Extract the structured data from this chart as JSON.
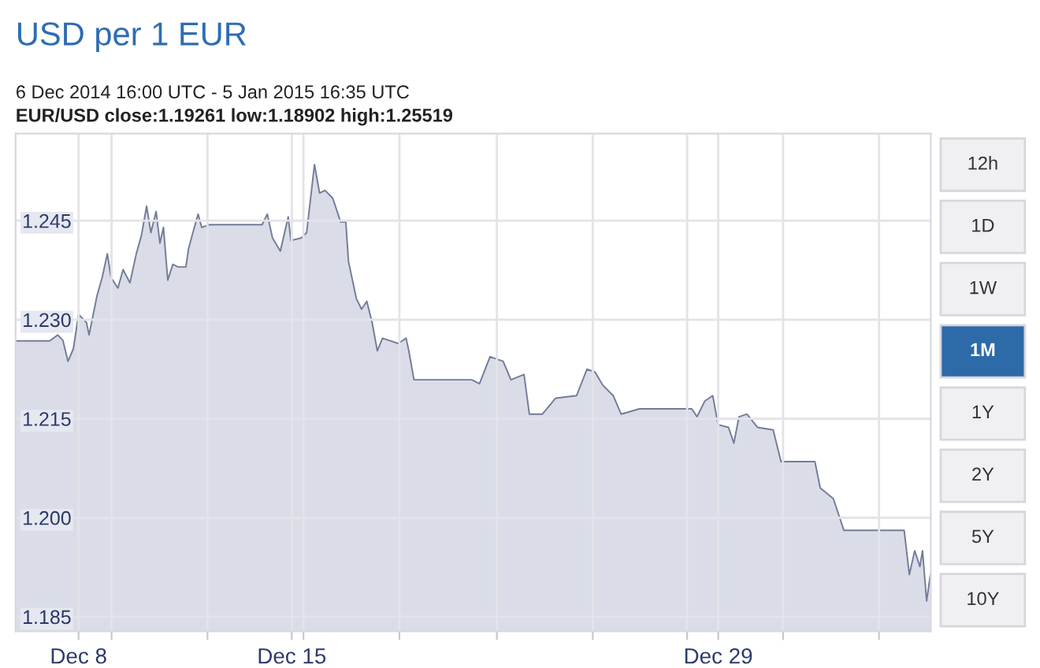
{
  "chart_data": [
    {
      "type": "area",
      "title": "USD per 1 EUR",
      "subtitle": "6 Dec 2014 16:00 UTC - 5 Jan 2015 16:35 UTC",
      "annotations": [
        "EUR/USD close:1.19261 low:1.18902 high:1.25519"
      ],
      "x": [
        "2014-12-05T22:24",
        "2014-12-07T01:18",
        "2014-12-07T07:30",
        "2014-12-07T11:36",
        "2014-12-07T15:42",
        "2014-12-07T19:54",
        "2014-12-08T00:00",
        "2014-12-08T06:12",
        "2014-12-08T08:18",
        "2014-12-08T14:30",
        "2014-12-08T18:36",
        "2014-12-08T22:42",
        "2014-12-09T01:36",
        "2014-12-09T07:00",
        "2014-12-09T11:06",
        "2014-12-09T16:30",
        "2014-12-09T21:30",
        "2014-12-10T01:36",
        "2014-12-10T05:36",
        "2014-12-10T09:00",
        "2014-12-10T13:06",
        "2014-12-10T16:06",
        "2014-12-10T18:54",
        "2014-12-10T22:18",
        "2014-12-11T02:18",
        "2014-12-11T06:24",
        "2014-12-11T12:36",
        "2014-12-11T14:42",
        "2014-12-11T18:06",
        "2014-12-11T22:12",
        "2014-12-12T01:00",
        "2014-12-12T07:12",
        "2014-12-14T00:36",
        "2014-12-14T04:42",
        "2014-12-14T08:48",
        "2014-12-14T15:00",
        "2014-12-14T21:12",
        "2014-12-14T23:18",
        "2014-12-15T07:36",
        "2014-12-15T11:42",
        "2014-12-15T17:54",
        "2014-12-15T21:54",
        "2014-12-16T02:12",
        "2014-12-16T08:18",
        "2014-12-16T14:30",
        "2014-12-16T18:36",
        "2014-12-16T20:42",
        "2014-12-17T02:54",
        "2014-12-17T07:00",
        "2014-12-17T11:06",
        "2014-12-17T15:18",
        "2014-12-17T19:24",
        "2014-12-17T23:30",
        "2014-12-18T11:54",
        "2014-12-18T18:06",
        "2014-12-18T20:12",
        "2014-12-19T00:18",
        "2014-12-20T21:48",
        "2014-12-21T03:54",
        "2014-12-21T12:12",
        "2014-12-21T22:30",
        "2014-12-22T04:42",
        "2014-12-22T15:00",
        "2014-12-22T19:12",
        "2014-12-23T05:30",
        "2014-12-23T15:48",
        "2014-12-24T08:24",
        "2014-12-24T16:36",
        "2014-12-24T22:48",
        "2014-12-25T05:00",
        "2014-12-25T13:18",
        "2014-12-25T19:30",
        "2014-12-26T10:00",
        "2014-12-28T03:12",
        "2014-12-28T07:18",
        "2014-12-28T13:30",
        "2014-12-28T19:42",
        "2014-12-28T23:54",
        "2014-12-29T08:06",
        "2014-12-29T12:18",
        "2014-12-29T16:24",
        "2014-12-29T22:36",
        "2014-12-30T06:54",
        "2014-12-30T19:18",
        "2014-12-31T01:30",
        "2015-01-01T04:12",
        "2015-01-01T08:24",
        "2015-01-01T18:42",
        "2015-01-02T03:00",
        "2015-01-04T02:30",
        "2015-01-04T06:36",
        "2015-01-04T10:48",
        "2015-01-04T14:54",
        "2015-01-04T17:00",
        "2015-01-04T20:12",
        "2015-01-04T23:12"
      ],
      "series": [
        {
          "color": "#737c99",
          "values": [
            1.2268,
            1.2268,
            1.2277,
            1.2269,
            1.2237,
            1.2256,
            1.2308,
            1.2296,
            1.2277,
            1.2336,
            1.2364,
            1.24,
            1.2364,
            1.2348,
            1.2376,
            1.2356,
            1.24,
            1.2428,
            1.2472,
            1.2432,
            1.2464,
            1.2416,
            1.244,
            1.236,
            1.2384,
            1.238,
            1.238,
            1.2408,
            1.2432,
            1.246,
            1.244,
            1.2444,
            1.2444,
            1.246,
            1.2424,
            1.2404,
            1.2456,
            1.242,
            1.2424,
            1.2432,
            1.2535,
            1.2492,
            1.2496,
            1.2484,
            1.2448,
            1.2448,
            1.2388,
            1.2332,
            1.2316,
            1.2328,
            1.2296,
            1.2253,
            1.2272,
            1.2264,
            1.2272,
            1.2253,
            1.2209,
            1.2209,
            1.2203,
            1.2244,
            1.2237,
            1.2209,
            1.2217,
            1.2157,
            1.2157,
            1.2181,
            1.2185,
            1.2225,
            1.2221,
            1.2201,
            1.2185,
            1.2157,
            1.2165,
            1.2165,
            1.2153,
            1.2177,
            1.2185,
            1.2141,
            1.2137,
            1.2113,
            1.2153,
            1.2157,
            1.2137,
            1.2133,
            1.2085,
            1.2085,
            1.2045,
            1.2029,
            1.1981,
            1.1981,
            1.1914,
            1.195,
            1.1926,
            1.195,
            1.1874,
            1.1914
          ]
        }
      ],
      "xlim": [
        "2014-12-05T22:24",
        "2015-01-04T23:30"
      ],
      "xticks": [
        {
          "value": "2014-12-08T00:00",
          "label": "Dec 8"
        },
        {
          "value": "2014-12-09T02:00",
          "label": null
        },
        {
          "value": "2014-12-12T05:36",
          "label": null
        },
        {
          "value": "2014-12-15T00:00",
          "label": "Dec 15"
        },
        {
          "value": "2014-12-15T09:12",
          "label": null
        },
        {
          "value": "2014-12-18T12:48",
          "label": null
        },
        {
          "value": "2014-12-21T17:36",
          "label": null
        },
        {
          "value": "2014-12-24T21:12",
          "label": null
        },
        {
          "value": "2014-12-27T23:30",
          "label": null
        },
        {
          "value": "2014-12-29T00:00",
          "label": "Dec 29"
        },
        {
          "value": "2014-12-31T03:06",
          "label": null
        },
        {
          "value": "2015-01-03T06:42",
          "label": null
        }
      ],
      "ylim": [
        1.1828,
        1.2582
      ],
      "yticks": [
        1.185,
        {
          "value": 1.2,
          "label": "1.200"
        },
        1.215,
        {
          "value": 1.23,
          "label": "1.230"
        },
        1.245
      ],
      "grid": true,
      "legend": false
    },
    {
      "type": "other",
      "annotations": [
        "12h",
        "1D",
        "1W",
        "1M",
        "1Y",
        "2Y",
        "5Y",
        "10Y"
      ],
      "colors": [
        "#f0f0f3",
        "#f0f0f3",
        "#f0f0f3",
        "#2d6aa8",
        "#f0f0f3",
        "#f0f0f3",
        "#f0f0f3",
        "#f0f0f3"
      ]
    }
  ]
}
